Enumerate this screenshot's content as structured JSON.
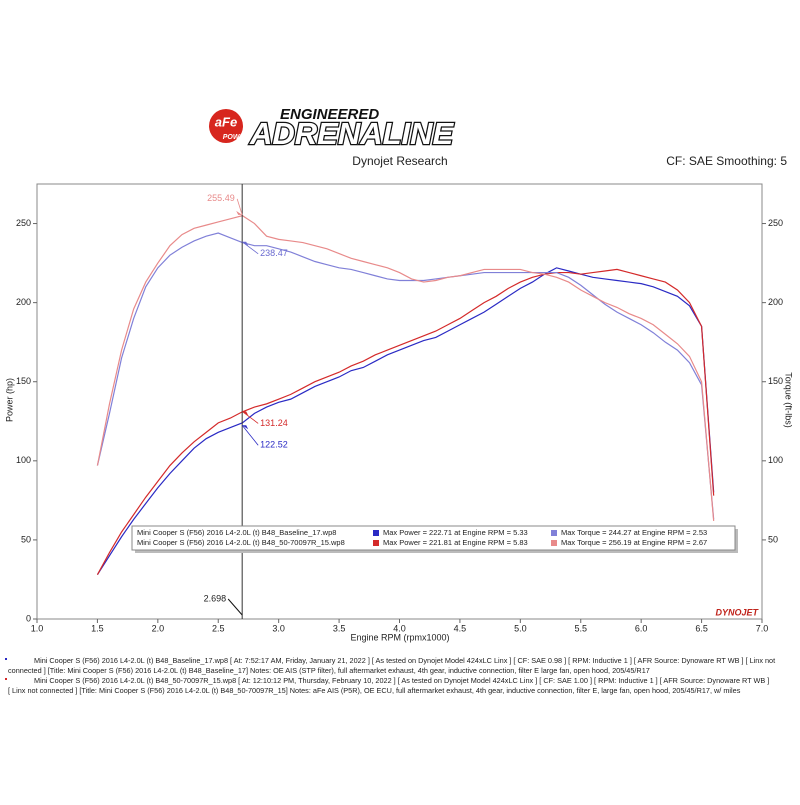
{
  "logo": {
    "brand": "aFe",
    "sub": "POWER",
    "line1": "ENGINEERED",
    "line2": "ADRENALINE"
  },
  "chart_data": {
    "type": "line",
    "title": "Dynojet Research",
    "subtitle": "CF: SAE Smoothing: 5",
    "x_label": "Engine RPM (rpmx1000)",
    "y_label": "Power (hp)",
    "y2_label": "Torque (ft-lbs)",
    "brand_mark": "DYNOJET",
    "xlim": [
      1.0,
      7.0
    ],
    "xticks": [
      {
        "value": 1,
        "label": "1.0"
      },
      1.5,
      {
        "value": 2,
        "label": "2.0"
      },
      2.5,
      {
        "value": 3,
        "label": "3.0"
      },
      3.5,
      {
        "value": 4,
        "label": "4.0"
      },
      4.5,
      {
        "value": 5,
        "label": "5.0"
      },
      5.5,
      {
        "value": 6,
        "label": "6.0"
      },
      6.5,
      {
        "value": 7,
        "label": "7.0"
      }
    ],
    "ylim": [
      0,
      275
    ],
    "yticks": [
      0,
      50,
      100,
      150,
      200,
      250
    ],
    "y2lim": [
      0,
      275
    ],
    "y2ticks": [
      50,
      100,
      150,
      200,
      250
    ],
    "cursor": 2.698,
    "x": [
      1.5,
      1.6,
      1.7,
      1.8,
      1.9,
      2.0,
      2.1,
      2.2,
      2.3,
      2.4,
      2.5,
      2.6,
      2.7,
      2.8,
      2.9,
      3.0,
      3.1,
      3.2,
      3.3,
      3.4,
      3.5,
      3.6,
      3.7,
      3.8,
      3.9,
      4.0,
      4.1,
      4.2,
      4.3,
      4.4,
      4.5,
      4.6,
      4.7,
      4.8,
      4.9,
      5.0,
      5.1,
      5.2,
      5.3,
      5.4,
      5.5,
      5.6,
      5.7,
      5.8,
      5.9,
      6.0,
      6.1,
      6.2,
      6.3,
      6.4,
      6.5,
      6.6
    ],
    "runs": [
      "Mini Cooper S (F56) 2016 L4-2.0L (t) B48_Baseline_17.wp8",
      "Mini Cooper S (F56) 2016 L4-2.0L (t) B48_50-70097R_15.wp8"
    ],
    "series": [
      {
        "name": "Max Power = 222.71 at Engine RPM = 5.33",
        "color": "#2a2ac4",
        "axis": "y",
        "values": [
          28,
          40,
          52,
          63,
          73,
          83,
          92,
          100,
          108,
          114,
          118,
          121,
          124,
          130,
          134,
          137,
          139,
          143,
          147,
          150,
          153,
          157,
          159,
          163,
          167,
          170,
          173,
          176,
          178,
          182,
          186,
          190,
          194,
          199,
          204,
          209,
          213,
          218,
          222,
          220,
          218,
          216,
          215,
          214,
          213,
          212,
          210,
          207,
          204,
          198,
          185,
          80
        ]
      },
      {
        "name": "Max Power = 221.81 at Engine RPM = 5.83",
        "color": "#d42a2a",
        "axis": "y",
        "values": [
          28,
          42,
          55,
          66,
          77,
          87,
          97,
          105,
          112,
          118,
          124,
          127,
          131,
          134,
          136,
          139,
          142,
          146,
          150,
          153,
          156,
          160,
          163,
          167,
          170,
          173,
          176,
          179,
          182,
          186,
          190,
          195,
          200,
          204,
          209,
          213,
          216,
          218,
          219,
          219,
          218,
          219,
          220,
          221,
          219,
          217,
          215,
          213,
          208,
          200,
          185,
          78
        ]
      },
      {
        "name": "Max Torque = 244.27 at Engine RPM = 2.53",
        "color": "#8080d8",
        "axis": "y2",
        "values": [
          97,
          130,
          165,
          190,
          210,
          222,
          230,
          235,
          239,
          242,
          244,
          241,
          238,
          236,
          236,
          234,
          232,
          229,
          226,
          224,
          222,
          221,
          219,
          217,
          215,
          214,
          214,
          214,
          215,
          216,
          217,
          218,
          219,
          219,
          219,
          219,
          219,
          219,
          219,
          216,
          211,
          205,
          199,
          194,
          190,
          186,
          181,
          175,
          170,
          162,
          148,
          63
        ]
      },
      {
        "name": "Max Torque = 256.19 at Engine RPM = 2.67",
        "color": "#e88a8a",
        "axis": "y2",
        "values": [
          97,
          136,
          170,
          196,
          213,
          225,
          236,
          243,
          247,
          249,
          251,
          253,
          255,
          250,
          242,
          240,
          239,
          238,
          236,
          234,
          231,
          228,
          226,
          224,
          222,
          219,
          215,
          213,
          214,
          216,
          217,
          219,
          221,
          221,
          221,
          221,
          219,
          218,
          216,
          213,
          208,
          204,
          200,
          197,
          193,
          190,
          186,
          180,
          174,
          166,
          150,
          62
        ]
      }
    ],
    "annotations": [
      {
        "x": 2.698,
        "value": 255.49,
        "axis": "y2",
        "color": "#e88a8a"
      },
      {
        "x": 2.698,
        "value": 238.47,
        "axis": "y2",
        "color": "#6a6ad0"
      },
      {
        "x": 2.698,
        "value": 131.24,
        "axis": "y",
        "color": "#d42a2a"
      },
      {
        "x": 2.698,
        "value": 122.52,
        "axis": "y",
        "color": "#2a2ac4"
      }
    ]
  },
  "notes": [
    "Mini Cooper S (F56) 2016 L4-2.0L (t) B48_Baseline_17.wp8  [ At: 7:52:17 AM, Friday, January 21, 2022 ]  [ As tested on Dynojet Model 424xLC Linx ]  [ CF: SAE 0.98 ]  [ RPM: Inductive 1 ]  [ AFR Source: Dynoware RT WB ]  [ Linx not",
    "connected ]  [Title: Mini Cooper S (F56) 2016 L4-2.0L (t) B48_Baseline_17]  Notes: OE AIS (STP filter), full aftermarket exhaust, 4th gear, inductive connection, filter E large fan, open hood, 205/45/R17",
    "Mini Cooper S (F56) 2016 L4-2.0L (t) B48_50-70097R_15.wp8  [ At: 12:10:12 PM, Thursday, February 10, 2022 ]  [ As tested on Dynojet Model 424xLC Linx ]  [ CF: SAE 1.00 ]  [ RPM: Inductive 1 ]  [ AFR Source: Dynoware RT WB ]",
    "[ Linx not connected ]  [Title: Mini Cooper S (F56) 2016 L4-2.0L (t) B48_50-70097R_15]  Notes: aFe AIS (P5R), OE ECU, full aftermarket exhaust, 4th gear, inductive connection, filter E, large fan, open hood, 205/45/R17, w/ miles"
  ]
}
